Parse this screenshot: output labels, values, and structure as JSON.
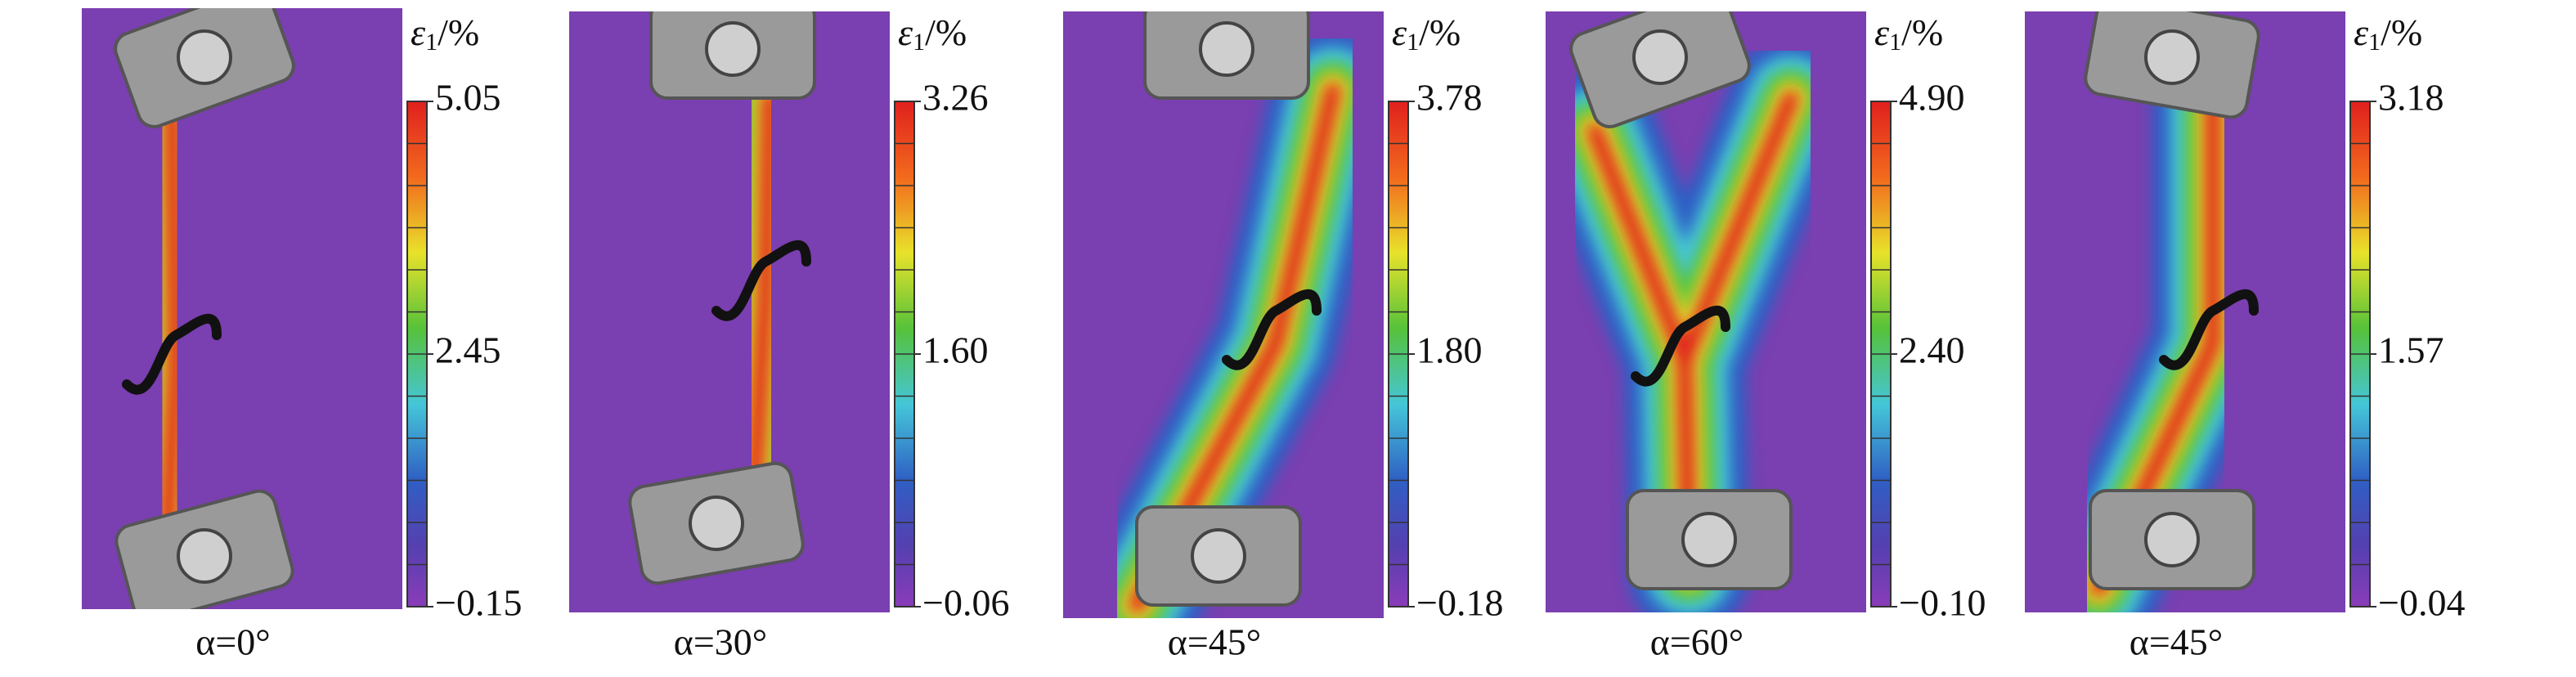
{
  "panels": [
    {
      "caption": "α=0°",
      "colorbar": {
        "symbol": "ε",
        "subscript": "1",
        "unit": "/%",
        "ticks": [
          "5.05",
          "2.45",
          "−0.15"
        ]
      }
    },
    {
      "caption": "α=30°",
      "colorbar": {
        "symbol": "ε",
        "subscript": "1",
        "unit": "/%",
        "ticks": [
          "3.26",
          "1.60",
          "−0.06"
        ]
      }
    },
    {
      "caption": "α=45°",
      "colorbar": {
        "symbol": "ε",
        "subscript": "1",
        "unit": "/%",
        "ticks": [
          "3.78",
          "1.80",
          "−0.18"
        ]
      }
    },
    {
      "caption": "α=60°",
      "colorbar": {
        "symbol": "ε",
        "subscript": "1",
        "unit": "/%",
        "ticks": [
          "4.90",
          "2.40",
          "−0.10"
        ]
      }
    },
    {
      "caption": "α=45°",
      "colorbar": {
        "symbol": "ε",
        "subscript": "1",
        "unit": "/%",
        "ticks": [
          "3.18",
          "1.57",
          "−0.04"
        ]
      }
    }
  ]
}
